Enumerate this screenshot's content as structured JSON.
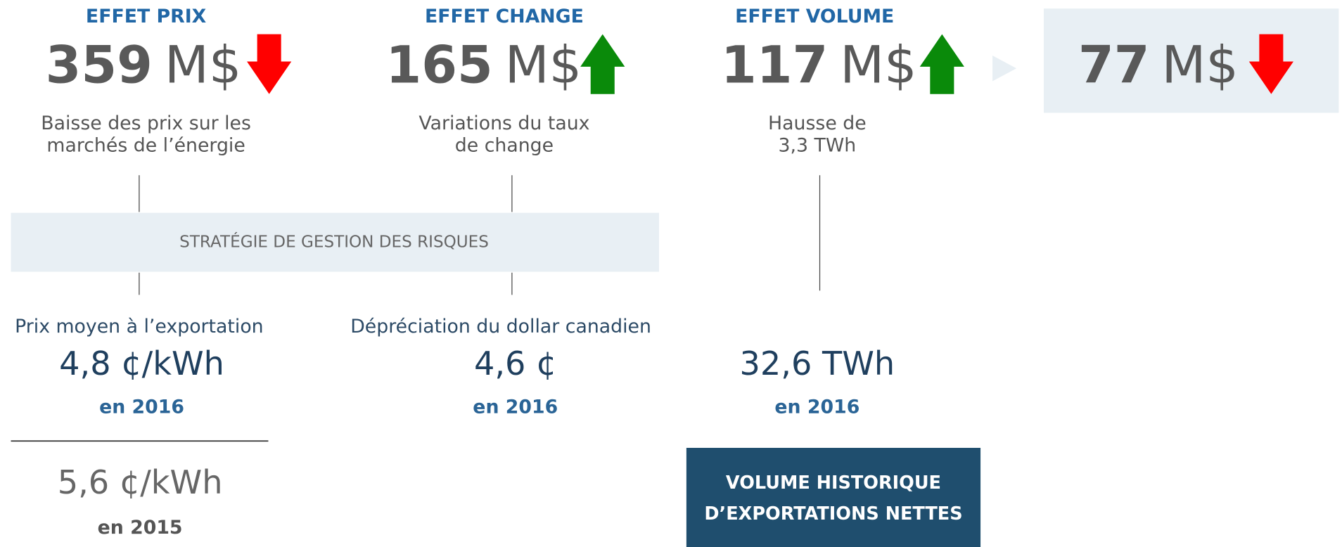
{
  "effects": [
    {
      "title": "EFFET PRIX",
      "amount": 359,
      "unit": "M$",
      "arrow": "down",
      "arrow_color": "#ff0000",
      "description": [
        "Baisse des prix sur les",
        "marchés de l’énergie"
      ]
    },
    {
      "title": "EFFET CHANGE",
      "amount": 165,
      "unit": "M$",
      "arrow": "up",
      "arrow_color": "#0a8a0a",
      "description": [
        "Variations du taux",
        "de change"
      ]
    },
    {
      "title": "EFFET VOLUME",
      "amount": 117,
      "unit": "M$",
      "arrow": "up",
      "arrow_color": "#0a8a0a",
      "description": [
        "Hausse de",
        "3,3 TWh"
      ]
    }
  ],
  "total": {
    "amount": 77,
    "unit": "M$",
    "arrow": "down",
    "arrow_color": "#ff0000"
  },
  "banner": "STRATÉGIE DE GESTION DES RISQUES",
  "details": [
    {
      "label": "Prix moyen à l’exportation",
      "value": "4,8 ¢/kWh",
      "year": "en 2016"
    },
    {
      "label": "Dépréciation du dollar canadien",
      "value": "4,6 ¢",
      "year": "en 2016"
    },
    {
      "value": "32,6 TWh",
      "year": "en 2016"
    }
  ],
  "previous": {
    "value": "5,6 ¢/kWh",
    "year": "en 2015"
  },
  "note": [
    "VOLUME HISTORIQUE",
    "D’EXPORTATIONS NETTES"
  ]
}
